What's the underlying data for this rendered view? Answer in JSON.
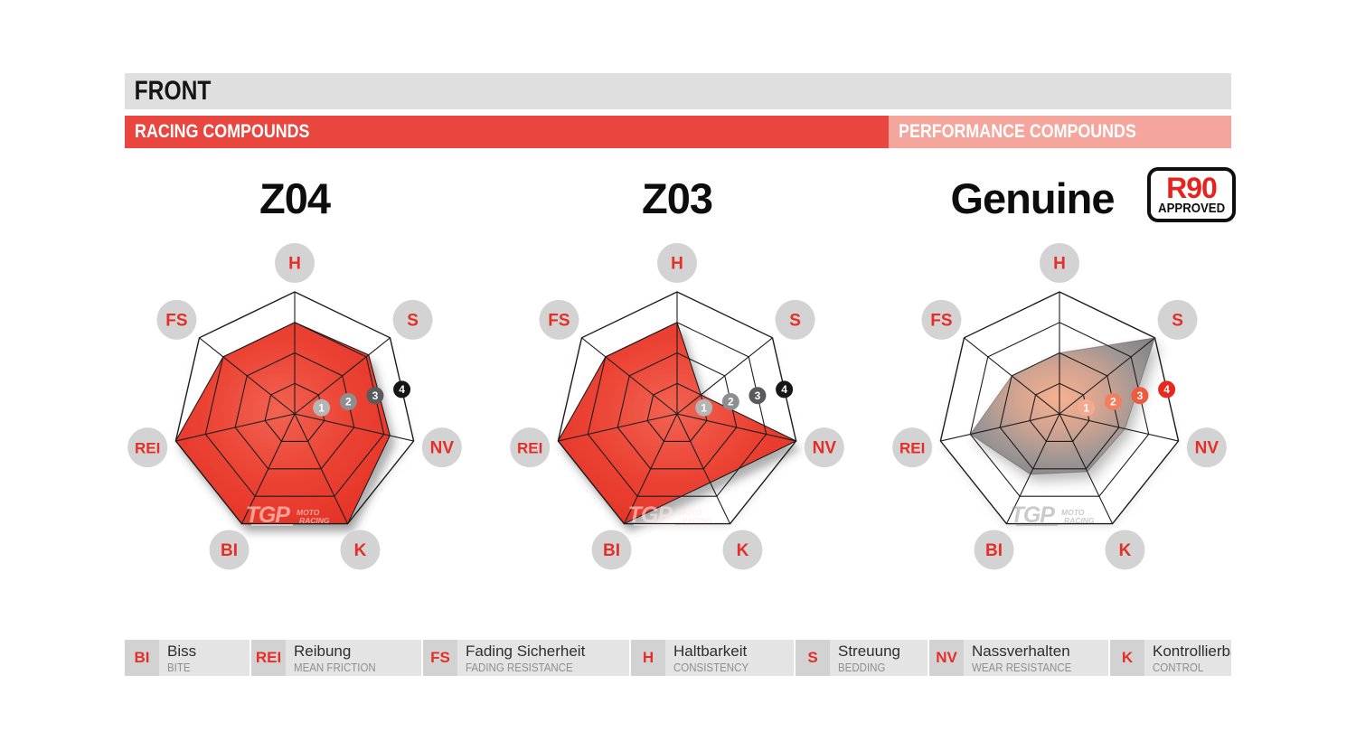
{
  "header": {
    "front": "FRONT",
    "racing_label": "RACING COMPOUNDS",
    "performance_label": "PERFORMANCE COMPOUNDS"
  },
  "badge": {
    "top": "R90",
    "bottom": "APPROVED"
  },
  "watermark": {
    "brand": "TGP",
    "line1": "MOTO",
    "line2": "RACING"
  },
  "colors": {
    "racing_red": "#e8463f",
    "performance_salmon": "#f4a69c",
    "label_red": "#e62e28",
    "circle_gray": "#d3d3d3",
    "grid": "#1d1d1d",
    "red_fill_center": "#f26352",
    "red_fill_mid": "#eb4334",
    "red_fill_edge": "#e22d22",
    "glow_center": "#f5ab88",
    "glow_mid": "#cf9d88",
    "gray_mid": "#958e8c",
    "gray_edge": "#6e6e71",
    "markers_racing": [
      "#b5b5b5",
      "#8e8e90",
      "#5a5a5c",
      "#161616"
    ],
    "markers_performance": [
      "#f5a98e",
      "#f27e5e",
      "#ed5a3c",
      "#e6281e"
    ]
  },
  "legend": [
    {
      "abbr": "BI",
      "de": "Biss",
      "en": "BITE"
    },
    {
      "abbr": "REI",
      "de": "Reibung",
      "en": "MEAN FRICTION"
    },
    {
      "abbr": "FS",
      "de": "Fading Sicherheit",
      "en": "FADING RESISTANCE"
    },
    {
      "abbr": "H",
      "de": "Haltbarkeit",
      "en": "CONSISTENCY"
    },
    {
      "abbr": "S",
      "de": "Streuung",
      "en": "BEDDING"
    },
    {
      "abbr": "NV",
      "de": "Nassverhalten",
      "en": "WEAR RESISTANCE"
    },
    {
      "abbr": "K",
      "de": "Kontrollierbarkeit",
      "en": "CONTROL"
    }
  ],
  "chart_data": [
    {
      "type": "radar",
      "title": "Z04",
      "section": "RACING COMPOUNDS",
      "theme": "red",
      "axes": [
        "H",
        "S",
        "NV",
        "K",
        "BI",
        "REI",
        "FS"
      ],
      "values": [
        3,
        3.1,
        3.2,
        4,
        4,
        4,
        3
      ],
      "scale_min": 0,
      "scale_max": 4,
      "rings": 4,
      "ring_labels": [
        "1",
        "2",
        "3",
        "4"
      ],
      "legend_position": "between S and NV axes",
      "grid": "heptagon web, 4 rings"
    },
    {
      "type": "radar",
      "title": "Z03",
      "section": "RACING COMPOUNDS",
      "theme": "red",
      "axes": [
        "H",
        "S",
        "NV",
        "K",
        "BI",
        "REI",
        "FS"
      ],
      "values": [
        3,
        1,
        4,
        2.5,
        4,
        4,
        3
      ],
      "scale_min": 0,
      "scale_max": 4,
      "rings": 4,
      "ring_labels": [
        "1",
        "2",
        "3",
        "4"
      ],
      "legend_position": "between S and NV axes",
      "grid": "heptagon web, 4 rings"
    },
    {
      "type": "radar",
      "title": "Genuine",
      "section": "PERFORMANCE COMPOUNDS",
      "badge": "R90 APPROVED",
      "theme": "gray-glow",
      "axes": [
        "H",
        "S",
        "NV",
        "K",
        "BI",
        "REI",
        "FS"
      ],
      "values": [
        2,
        4,
        2.2,
        2.1,
        2.2,
        3,
        2
      ],
      "scale_min": 0,
      "scale_max": 4,
      "rings": 4,
      "ring_labels": [
        "1",
        "2",
        "3",
        "4"
      ],
      "legend_position": "between S and NV axes",
      "grid": "heptagon web, 4 rings"
    }
  ]
}
